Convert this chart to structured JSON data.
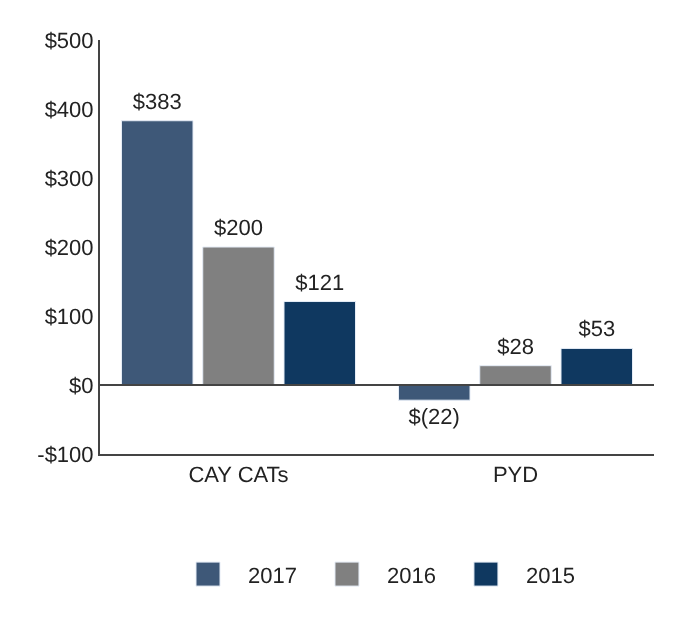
{
  "chart_data": {
    "type": "bar",
    "categories": [
      "CAY CATs",
      "PYD"
    ],
    "series": [
      {
        "name": "2017",
        "color": "#3e5878",
        "values": [
          383,
          -22
        ],
        "value_labels": [
          "$383",
          "$(22)"
        ]
      },
      {
        "name": "2016",
        "color": "#808080",
        "values": [
          200,
          28
        ],
        "value_labels": [
          "$200",
          "$28"
        ]
      },
      {
        "name": "2015",
        "color": "#0f3860",
        "values": [
          121,
          53
        ],
        "value_labels": [
          "$121",
          "$53"
        ]
      }
    ],
    "ylim": [
      -100,
      500
    ],
    "yticks": [
      {
        "value": -100,
        "label": "-$100"
      },
      {
        "value": 0,
        "label": "$0"
      },
      {
        "value": 100,
        "label": "$100"
      },
      {
        "value": 200,
        "label": "$200"
      },
      {
        "value": 300,
        "label": "$300"
      },
      {
        "value": 400,
        "label": "$400"
      },
      {
        "value": 500,
        "label": "$500"
      }
    ],
    "ref_lines": [
      {
        "axis": "y",
        "value": 0,
        "color": "#444444"
      }
    ],
    "grid": false,
    "legend": "bottom"
  }
}
